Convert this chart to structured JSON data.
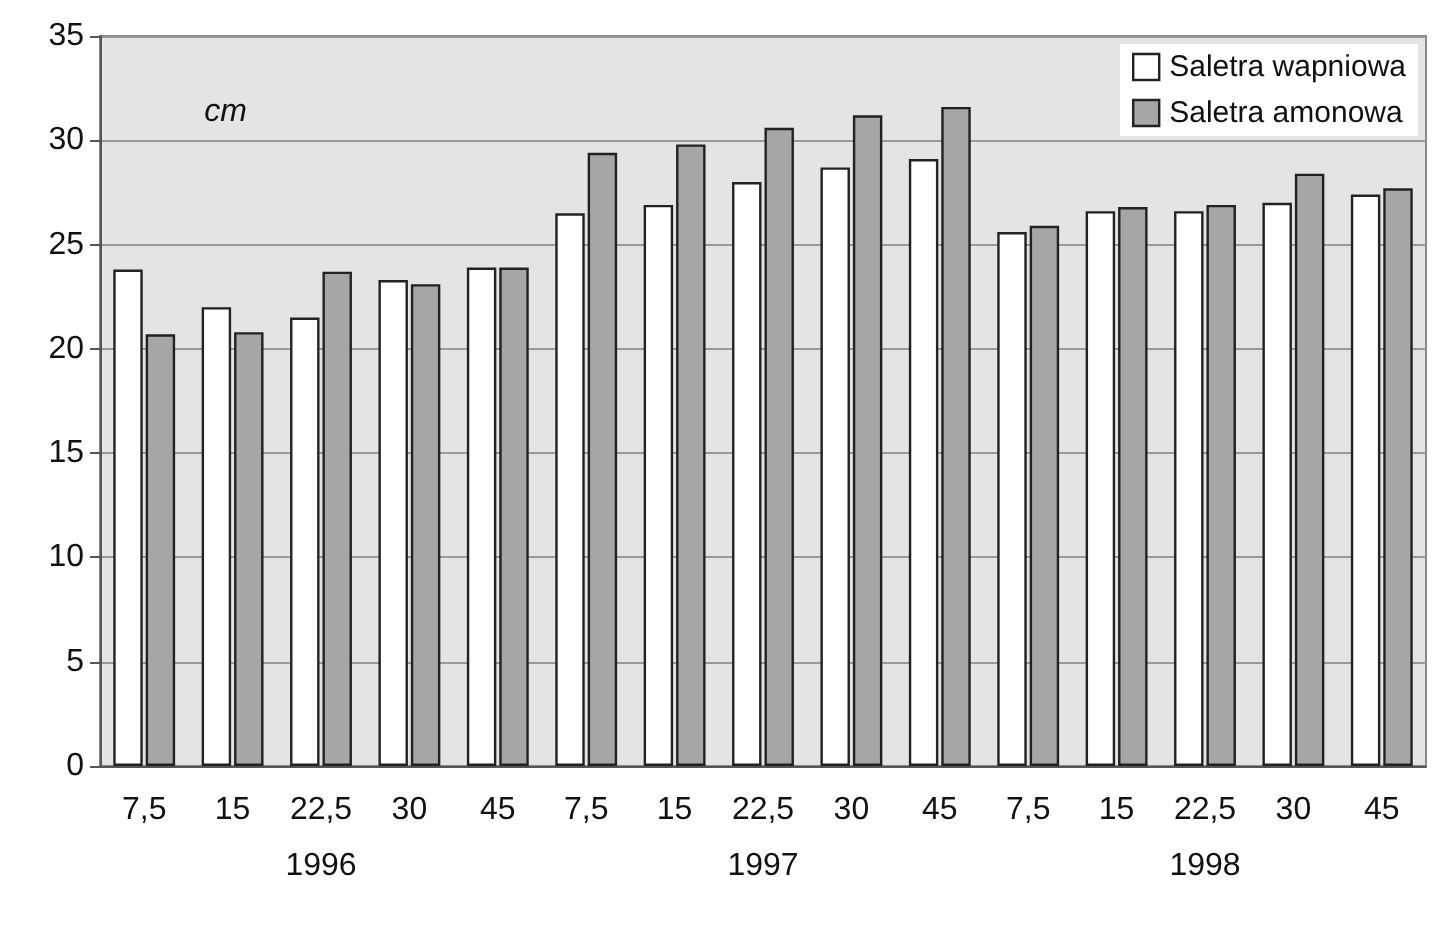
{
  "chart_data": {
    "type": "bar",
    "ylabel": "cm",
    "categories": [
      "7,5",
      "15",
      "22,5",
      "30",
      "45",
      "7,5",
      "15",
      "22,5",
      "30",
      "45",
      "7,5",
      "15",
      "22,5",
      "30",
      "45"
    ],
    "series": [
      {
        "name": "Saletra wapniowa",
        "color": "#ffffff",
        "values": [
          23.8,
          22.0,
          21.5,
          23.3,
          23.9,
          26.5,
          26.9,
          28.0,
          28.7,
          29.1,
          25.6,
          26.6,
          26.6,
          27.0,
          27.4
        ]
      },
      {
        "name": "Saletra amonowa",
        "color": "#a6a6a6",
        "values": [
          20.7,
          20.8,
          23.7,
          23.1,
          23.9,
          29.4,
          29.8,
          30.6,
          31.2,
          31.6,
          25.9,
          26.8,
          26.9,
          28.4,
          27.7
        ]
      }
    ],
    "annotations": [
      "1996",
      "1997",
      "1998"
    ],
    "ylim": [
      0,
      35
    ],
    "yticks": [
      0,
      5,
      10,
      15,
      20,
      25,
      30,
      35
    ],
    "grid": "y",
    "legend": "top right"
  }
}
